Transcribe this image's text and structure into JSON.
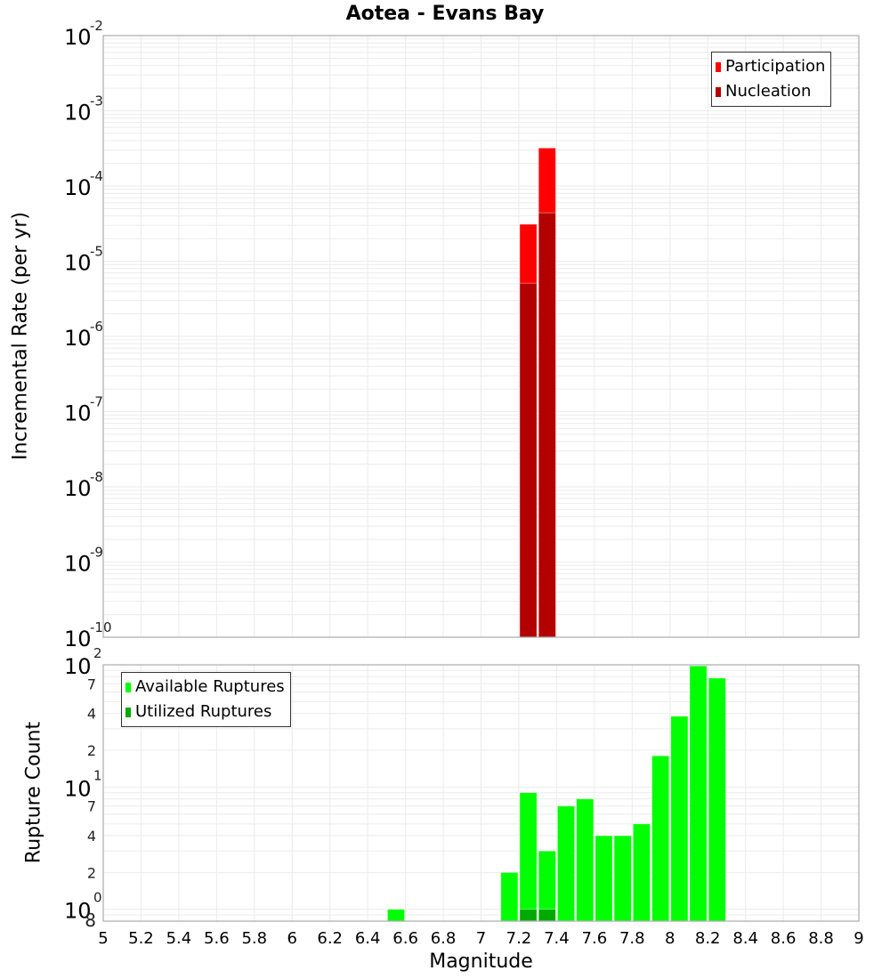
{
  "title": "Aotea - Evans Bay",
  "top_chart": {
    "ylabel": "Incremental Rate (per yr)",
    "legend": [
      {
        "label": "Participation",
        "color": "#ff0000"
      },
      {
        "label": "Nucleation",
        "color": "#b30000"
      }
    ]
  },
  "bottom_chart": {
    "ylabel": "Rupture Count",
    "xlabel": "Magnitude",
    "legend": [
      {
        "label": "Available Ruptures",
        "color": "#00ff00"
      },
      {
        "label": "Utilized Ruptures",
        "color": "#00aa00"
      }
    ]
  },
  "chart_data": [
    {
      "type": "bar",
      "title": "Aotea - Evans Bay",
      "xlabel": "",
      "ylabel": "Incremental Rate (per yr)",
      "yscale": "log",
      "ylim": [
        1e-10,
        0.01
      ],
      "xlim": [
        5,
        9
      ],
      "yticks": [
        "10^-2",
        "10^-3",
        "10^-4",
        "10^-5",
        "10^-6",
        "10^-7",
        "10^-8",
        "10^-9",
        "10^-10"
      ],
      "grid": true,
      "legend_position": "upper right",
      "bin_width": 0.1,
      "x": [
        7.25,
        7.35
      ],
      "series": [
        {
          "name": "Participation",
          "color": "#ff0000",
          "values": [
            3.1e-05,
            0.00032
          ]
        },
        {
          "name": "Nucleation",
          "color": "#b30000",
          "values": [
            5.1e-06,
            4.4e-05
          ]
        }
      ]
    },
    {
      "type": "bar",
      "title": "",
      "xlabel": "Magnitude",
      "ylabel": "Rupture Count",
      "yscale": "log",
      "ylim": [
        0.8,
        100
      ],
      "xlim": [
        5,
        9
      ],
      "xticks": [
        "5",
        "5.2",
        "5.4",
        "5.6",
        "5.8",
        "6",
        "6.2",
        "6.4",
        "6.6",
        "6.8",
        "7",
        "7.2",
        "7.4",
        "7.6",
        "7.8",
        "8",
        "8.2",
        "8.4",
        "8.6",
        "8.8",
        "9"
      ],
      "yticks": [
        "8",
        "10^0",
        "2",
        "4",
        "7",
        "10^1",
        "2",
        "4",
        "7",
        "10^2"
      ],
      "grid": true,
      "legend_position": "upper left",
      "bin_width": 0.1,
      "x": [
        6.55,
        7.15,
        7.25,
        7.35,
        7.45,
        7.55,
        7.65,
        7.75,
        7.85,
        7.95,
        8.05,
        8.15,
        8.25
      ],
      "series": [
        {
          "name": "Available Ruptures",
          "color": "#00ff00",
          "values": [
            1,
            2,
            9,
            3,
            7,
            8,
            4,
            4,
            5,
            18,
            38,
            98,
            78
          ]
        },
        {
          "name": "Utilized Ruptures",
          "color": "#00aa00",
          "values": [
            0,
            0,
            1,
            1,
            0,
            0,
            0,
            0,
            0,
            0,
            0,
            0,
            0
          ]
        }
      ]
    }
  ]
}
